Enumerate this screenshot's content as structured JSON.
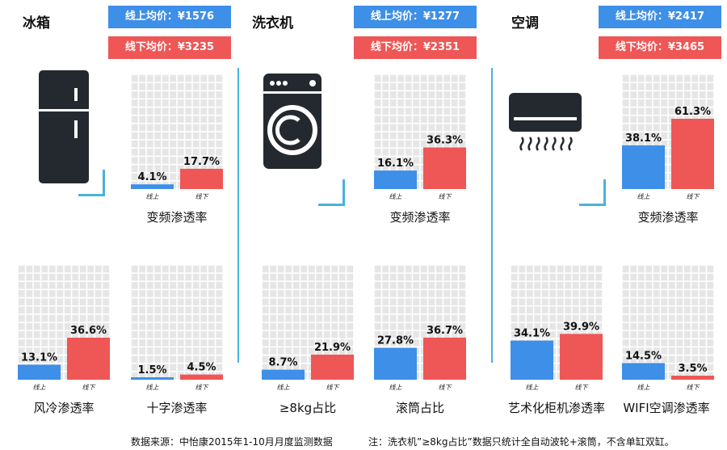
{
  "categories": [
    {
      "title": "冰箱",
      "online_price": "线上均价：¥1576",
      "offline_price": "线下均价：¥3235",
      "icon": "fridge-icon"
    },
    {
      "title": "洗衣机",
      "online_price": "线上均价：¥1277",
      "offline_price": "线下均价：¥2351",
      "icon": "washing-machine-icon"
    },
    {
      "title": "空调",
      "online_price": "线上均价：¥2417",
      "offline_price": "线下均价：¥3465",
      "icon": "air-conditioner-icon"
    }
  ],
  "colors": {
    "online": "#3d8fe8",
    "offline": "#ef5656",
    "grid": "#e6e6e6",
    "accent": "#4ab2d9"
  },
  "chart_data": [
    {
      "type": "bar",
      "title": "变频渗透率",
      "categories": [
        "线上",
        "线下"
      ],
      "values": [
        4.1,
        17.7
      ],
      "labels": [
        "4.1%",
        "17.7%"
      ],
      "ylim": [
        0,
        100
      ]
    },
    {
      "type": "bar",
      "title": "风冷渗透率",
      "categories": [
        "线上",
        "线下"
      ],
      "values": [
        13.1,
        36.6
      ],
      "labels": [
        "13.1%",
        "36.6%"
      ],
      "ylim": [
        0,
        100
      ]
    },
    {
      "type": "bar",
      "title": "十字渗透率",
      "categories": [
        "线上",
        "线下"
      ],
      "values": [
        1.5,
        4.5
      ],
      "labels": [
        "1.5%",
        "4.5%"
      ],
      "ylim": [
        0,
        100
      ]
    },
    {
      "type": "bar",
      "title": "变频渗透率",
      "categories": [
        "线上",
        "线下"
      ],
      "values": [
        16.1,
        36.3
      ],
      "labels": [
        "16.1%",
        "36.3%"
      ],
      "ylim": [
        0,
        100
      ]
    },
    {
      "type": "bar",
      "title": "≥8kg占比",
      "categories": [
        "线上",
        "线下"
      ],
      "values": [
        8.7,
        21.9
      ],
      "labels": [
        "8.7%",
        "21.9%"
      ],
      "ylim": [
        0,
        100
      ]
    },
    {
      "type": "bar",
      "title": "滚筒占比",
      "categories": [
        "线上",
        "线下"
      ],
      "values": [
        27.8,
        36.7
      ],
      "labels": [
        "27.8%",
        "36.7%"
      ],
      "ylim": [
        0,
        100
      ]
    },
    {
      "type": "bar",
      "title": "变频渗透率",
      "categories": [
        "线上",
        "线下"
      ],
      "values": [
        38.1,
        61.3
      ],
      "labels": [
        "38.1%",
        "61.3%"
      ],
      "ylim": [
        0,
        100
      ]
    },
    {
      "type": "bar",
      "title": "艺术化柜机渗透率",
      "categories": [
        "线上",
        "线下"
      ],
      "values": [
        34.1,
        39.9
      ],
      "labels": [
        "34.1%",
        "39.9%"
      ],
      "ylim": [
        0,
        100
      ]
    },
    {
      "type": "bar",
      "title": "WIFI空调渗透率",
      "categories": [
        "线上",
        "线下"
      ],
      "values": [
        14.5,
        3.5
      ],
      "labels": [
        "14.5%",
        "3.5%"
      ],
      "ylim": [
        0,
        100
      ]
    }
  ],
  "footer": {
    "source": "数据来源：中怡康2015年1-10月月度监测数据",
    "note": "注：洗衣机”≥8kg占比”数据只统计全自动波轮+滚筒，不含单缸双缸。"
  }
}
